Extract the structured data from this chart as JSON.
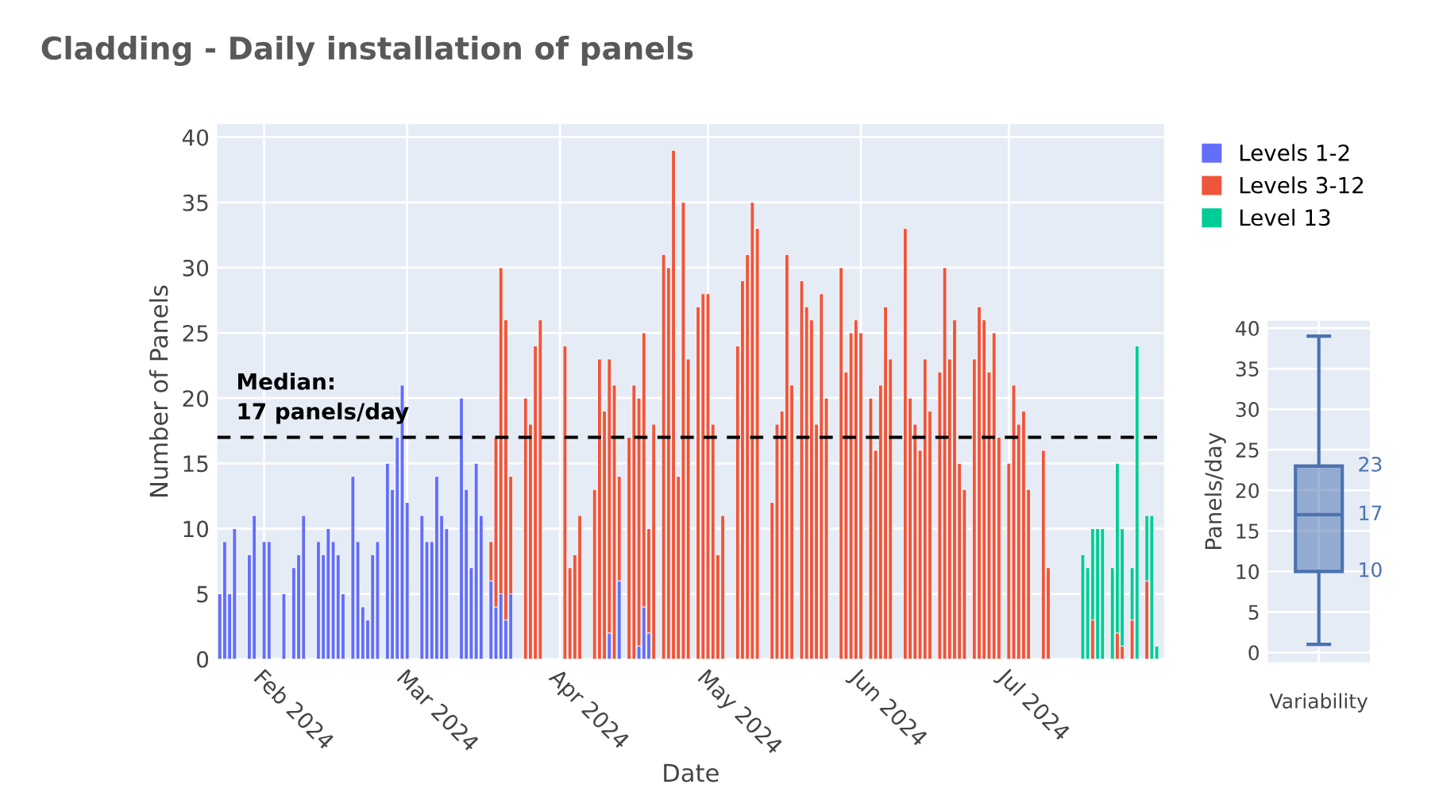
{
  "chart_data": [
    {
      "type": "bar",
      "title": "Cladding - Daily installation of panels",
      "xlabel": "Date",
      "ylabel": "Number of Panels",
      "stacked": true,
      "x": [
        "2024-01-23",
        "2024-01-24",
        "2024-01-25",
        "2024-01-26",
        "2024-01-29",
        "2024-01-30",
        "2024-02-01",
        "2024-02-02",
        "2024-02-05",
        "2024-02-07",
        "2024-02-08",
        "2024-02-09",
        "2024-02-12",
        "2024-02-13",
        "2024-02-14",
        "2024-02-15",
        "2024-02-16",
        "2024-02-17",
        "2024-02-19",
        "2024-02-20",
        "2024-02-21",
        "2024-02-22",
        "2024-02-23",
        "2024-02-24",
        "2024-02-26",
        "2024-02-27",
        "2024-02-28",
        "2024-02-29",
        "2024-03-01",
        "2024-03-04",
        "2024-03-05",
        "2024-03-06",
        "2024-03-07",
        "2024-03-08",
        "2024-03-09",
        "2024-03-12",
        "2024-03-13",
        "2024-03-14",
        "2024-03-15",
        "2024-03-16",
        "2024-03-18",
        "2024-03-19",
        "2024-03-20",
        "2024-03-21",
        "2024-03-22",
        "2024-03-25",
        "2024-03-26",
        "2024-03-27",
        "2024-03-28",
        "2024-04-02",
        "2024-04-03",
        "2024-04-04",
        "2024-04-05",
        "2024-04-08",
        "2024-04-09",
        "2024-04-10",
        "2024-04-11",
        "2024-04-12",
        "2024-04-13",
        "2024-04-15",
        "2024-04-16",
        "2024-04-17",
        "2024-04-18",
        "2024-04-19",
        "2024-04-20",
        "2024-04-22",
        "2024-04-23",
        "2024-04-24",
        "2024-04-25",
        "2024-04-26",
        "2024-04-27",
        "2024-04-29",
        "2024-04-30",
        "2024-05-01",
        "2024-05-02",
        "2024-05-03",
        "2024-05-04",
        "2024-05-07",
        "2024-05-08",
        "2024-05-09",
        "2024-05-10",
        "2024-05-11",
        "2024-05-14",
        "2024-05-15",
        "2024-05-16",
        "2024-05-17",
        "2024-05-18",
        "2024-05-20",
        "2024-05-21",
        "2024-05-22",
        "2024-05-23",
        "2024-05-24",
        "2024-05-25",
        "2024-05-28",
        "2024-05-29",
        "2024-05-30",
        "2024-05-31",
        "2024-06-01",
        "2024-06-03",
        "2024-06-04",
        "2024-06-05",
        "2024-06-06",
        "2024-06-07",
        "2024-06-10",
        "2024-06-11",
        "2024-06-12",
        "2024-06-13",
        "2024-06-14",
        "2024-06-15",
        "2024-06-17",
        "2024-06-18",
        "2024-06-19",
        "2024-06-20",
        "2024-06-21",
        "2024-06-22",
        "2024-06-24",
        "2024-06-25",
        "2024-06-26",
        "2024-06-27",
        "2024-06-28",
        "2024-06-29",
        "2024-07-01",
        "2024-07-02",
        "2024-07-03",
        "2024-07-04",
        "2024-07-05",
        "2024-07-08",
        "2024-07-09",
        "2024-07-16",
        "2024-07-17",
        "2024-07-18",
        "2024-07-19",
        "2024-07-20",
        "2024-07-22",
        "2024-07-23",
        "2024-07-24",
        "2024-07-26",
        "2024-07-27",
        "2024-07-29",
        "2024-07-30",
        "2024-07-31"
      ],
      "series": [
        {
          "name": "Levels 1-2",
          "color": "#636efa",
          "values": [
            5,
            9,
            5,
            10,
            8,
            11,
            9,
            9,
            5,
            7,
            8,
            11,
            9,
            8,
            10,
            9,
            8,
            5,
            14,
            9,
            4,
            3,
            8,
            9,
            15,
            13,
            17,
            21,
            12,
            11,
            9,
            9,
            14,
            11,
            10,
            20,
            13,
            7,
            15,
            11,
            6,
            4,
            5,
            3,
            5,
            null,
            null,
            null,
            null,
            null,
            null,
            null,
            null,
            null,
            null,
            null,
            2,
            null,
            6,
            null,
            null,
            1,
            4,
            2,
            null,
            null,
            null,
            null,
            null,
            null,
            null,
            null,
            null,
            null,
            null,
            null,
            null,
            null,
            null,
            null,
            null,
            null,
            null,
            null,
            null,
            null,
            null,
            null,
            null,
            null,
            null,
            null,
            null,
            null,
            null,
            null,
            null,
            null,
            null,
            null,
            null,
            null,
            null,
            null,
            null,
            null,
            null,
            null,
            null,
            null,
            null,
            null,
            null,
            null,
            null,
            null,
            null,
            null,
            null,
            null,
            null,
            null,
            null,
            null,
            null,
            null,
            null,
            null,
            null,
            null,
            null,
            null,
            null,
            null,
            null,
            null,
            null,
            null,
            null,
            null,
            null
          ]
        },
        {
          "name": "Levels 3-12",
          "color": "#ef553b",
          "values": [
            null,
            null,
            null,
            null,
            null,
            null,
            null,
            null,
            null,
            null,
            null,
            null,
            null,
            null,
            null,
            null,
            null,
            null,
            null,
            null,
            null,
            null,
            null,
            null,
            null,
            null,
            null,
            null,
            null,
            null,
            null,
            null,
            null,
            null,
            null,
            null,
            null,
            null,
            null,
            null,
            3,
            13,
            25,
            23,
            9,
            20,
            18,
            24,
            26,
            24,
            7,
            8,
            11,
            13,
            23,
            19,
            21,
            21,
            8,
            17,
            21,
            19,
            21,
            8,
            18,
            31,
            30,
            39,
            14,
            35,
            23,
            27,
            28,
            28,
            18,
            8,
            11,
            24,
            29,
            31,
            35,
            33,
            12,
            18,
            19,
            31,
            21,
            29,
            27,
            26,
            18,
            28,
            20,
            30,
            22,
            25,
            26,
            25,
            20,
            16,
            21,
            27,
            23,
            33,
            20,
            18,
            16,
            23,
            19,
            22,
            30,
            23,
            26,
            15,
            13,
            23,
            27,
            26,
            22,
            25,
            17,
            15,
            21,
            18,
            19,
            13,
            16,
            7,
            null,
            null,
            3,
            null,
            null,
            null,
            2,
            1,
            3,
            null,
            6,
            null,
            null
          ]
        },
        {
          "name": "Level 13",
          "color": "#00cc96",
          "values": [
            null,
            null,
            null,
            null,
            null,
            null,
            null,
            null,
            null,
            null,
            null,
            null,
            null,
            null,
            null,
            null,
            null,
            null,
            null,
            null,
            null,
            null,
            null,
            null,
            null,
            null,
            null,
            null,
            null,
            null,
            null,
            null,
            null,
            null,
            null,
            null,
            null,
            null,
            null,
            null,
            null,
            null,
            null,
            null,
            null,
            null,
            null,
            null,
            null,
            null,
            null,
            null,
            null,
            null,
            null,
            null,
            null,
            null,
            null,
            null,
            null,
            null,
            null,
            null,
            null,
            null,
            null,
            null,
            null,
            null,
            null,
            null,
            null,
            null,
            null,
            null,
            null,
            null,
            null,
            null,
            null,
            null,
            null,
            null,
            null,
            null,
            null,
            null,
            null,
            null,
            null,
            null,
            null,
            null,
            null,
            null,
            null,
            null,
            null,
            null,
            null,
            null,
            null,
            null,
            null,
            null,
            null,
            null,
            null,
            null,
            null,
            null,
            null,
            null,
            null,
            null,
            null,
            null,
            null,
            null,
            null,
            null,
            null,
            null,
            null,
            null,
            null,
            null,
            8,
            7,
            7,
            10,
            10,
            7,
            13,
            9,
            4,
            24,
            5,
            11,
            1
          ]
        }
      ],
      "xlim": [
        "2024-01-22T12:00",
        "2024-08-01T12:00"
      ],
      "xticks": [
        {
          "value": "2024-02-01",
          "label": "Feb 2024"
        },
        {
          "value": "2024-03-01",
          "label": "Mar 2024"
        },
        {
          "value": "2024-04-01",
          "label": "Apr 2024"
        },
        {
          "value": "2024-05-01",
          "label": "May 2024"
        },
        {
          "value": "2024-06-01",
          "label": "Jun 2024"
        },
        {
          "value": "2024-07-01",
          "label": "Jul 2024"
        }
      ],
      "ylim": [
        0,
        41
      ],
      "yticks": [
        0,
        5,
        10,
        15,
        20,
        25,
        30,
        35,
        40
      ],
      "ref_lines": [
        {
          "axis": "y",
          "value": 17,
          "label": "Median:\n17 panels/day",
          "color": "#000000",
          "line_style": "dashed"
        }
      ],
      "grid": true,
      "legend": "top right"
    },
    {
      "type": "box",
      "ylabel": "Panels/day",
      "categories": [
        "Variability"
      ],
      "boxes": [
        {
          "low": 1,
          "q1": 10,
          "median": 17,
          "q3": 23,
          "high": 39
        }
      ],
      "color": "#4c72b0",
      "ylim": [
        -1.2,
        40.9
      ],
      "yticks": [
        0,
        5,
        10,
        15,
        20,
        25,
        30,
        35,
        40
      ],
      "grid": true,
      "annotations": [
        {
          "text": "23",
          "x": "Variability",
          "y": 23
        },
        {
          "text": "17",
          "x": "Variability",
          "y": 17
        },
        {
          "text": "10",
          "x": "Variability",
          "y": 10
        }
      ]
    }
  ]
}
